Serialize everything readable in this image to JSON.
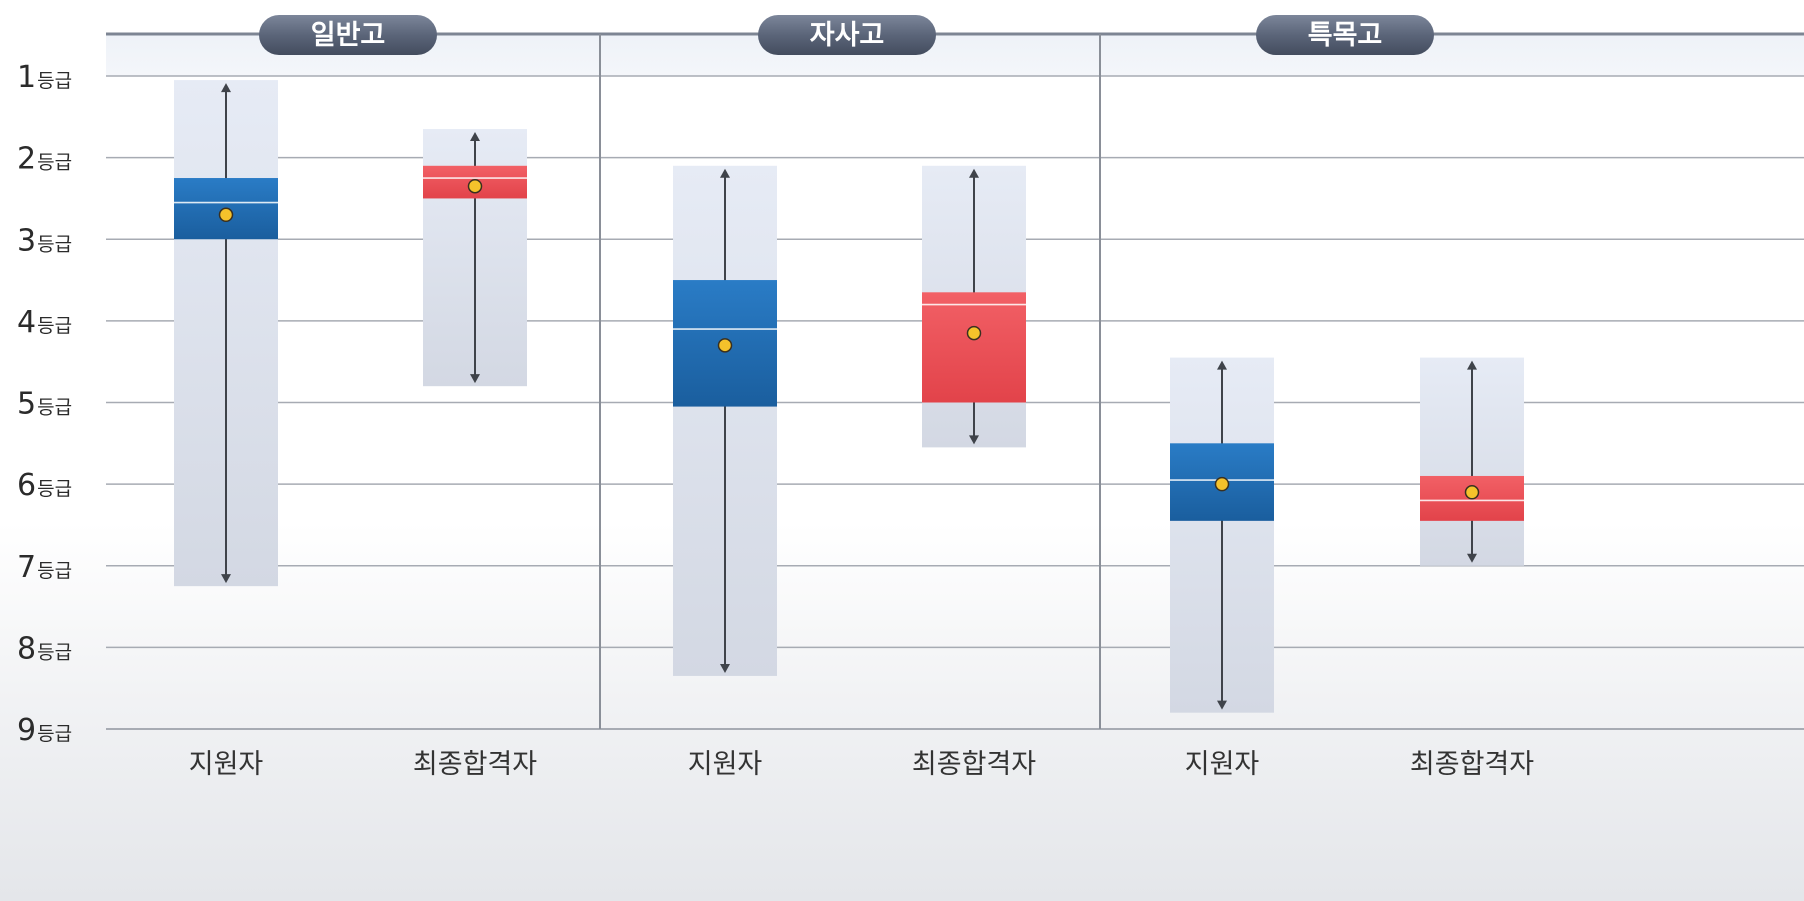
{
  "chart_data": {
    "type": "box",
    "y_axis": {
      "ticks": [
        1,
        2,
        3,
        4,
        5,
        6,
        7,
        8,
        9
      ],
      "tick_suffix": "등급",
      "inverted": true,
      "range": [
        1,
        9
      ]
    },
    "grid": true,
    "groups": [
      {
        "name": "일반고",
        "boxes": [
          {
            "category": "지원자",
            "series": "applicants",
            "color": "#1f6db4",
            "range_min": 1.05,
            "range_max": 7.25,
            "q1": 2.25,
            "q3": 3.0,
            "median": 2.55,
            "mean": 2.7
          },
          {
            "category": "최종합격자",
            "series": "final_admits",
            "color": "#e8464b",
            "range_min": 1.65,
            "range_max": 4.8,
            "q1": 2.1,
            "q3": 2.5,
            "median": 2.25,
            "mean": 2.35
          }
        ]
      },
      {
        "name": "자사고",
        "boxes": [
          {
            "category": "지원자",
            "series": "applicants",
            "color": "#1f6db4",
            "range_min": 2.1,
            "range_max": 8.35,
            "q1": 3.5,
            "q3": 5.05,
            "median": 4.1,
            "mean": 4.3
          },
          {
            "category": "최종합격자",
            "series": "final_admits",
            "color": "#e8464b",
            "range_min": 2.1,
            "range_max": 5.55,
            "q1": 3.65,
            "q3": 5.0,
            "median": 3.8,
            "mean": 4.15
          }
        ]
      },
      {
        "name": "특목고",
        "boxes": [
          {
            "category": "지원자",
            "series": "applicants",
            "color": "#1f6db4",
            "range_min": 4.45,
            "range_max": 8.8,
            "q1": 5.5,
            "q3": 6.45,
            "median": 5.95,
            "mean": 6.0
          },
          {
            "category": "최종합격자",
            "series": "final_admits",
            "color": "#e8464b",
            "range_min": 4.45,
            "range_max": 7.0,
            "q1": 5.9,
            "q3": 6.45,
            "median": 6.2,
            "mean": 6.1
          }
        ]
      }
    ],
    "colors": {
      "range_band": "#e3e9f4",
      "header_pill": "#5b6579",
      "mean_marker": "#f5c22b",
      "grid": "#a7abb3"
    }
  }
}
